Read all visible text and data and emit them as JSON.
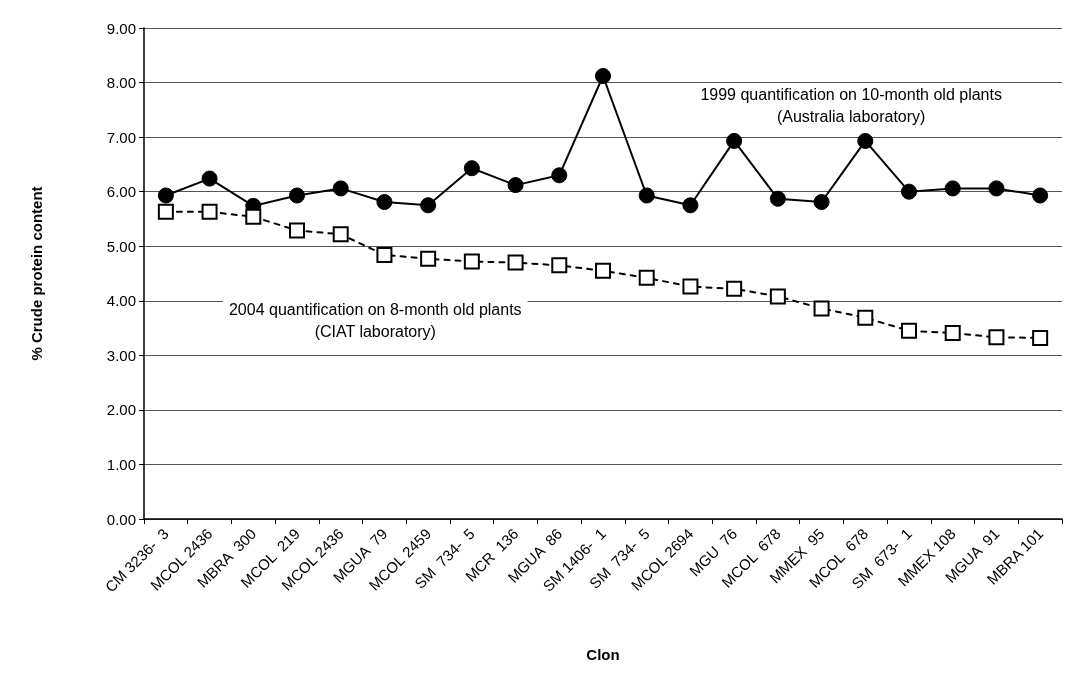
{
  "chart_data": {
    "type": "line",
    "xlabel": "Clon",
    "ylabel": "% Crude protein content",
    "categories": [
      "CM 3236-  3",
      "MCOL 2436",
      "MBRA  300",
      "MCOL  219",
      "MCOL 2436",
      "MGUA  79",
      "MCOL 2459",
      "SM  734-  5",
      "MCR  136",
      "MGUA  86",
      "SM 1406-  1",
      "SM  734-  5",
      "MCOL 2694",
      "MGU  76",
      "MCOL  678",
      "MMEX  95",
      "MCOL  678",
      "SM  673-  1",
      "MMEX 108",
      "MGUA  91",
      "MBRA 101"
    ],
    "series": [
      {
        "name": "1999 quantification on 10-month old plants\n(Australia laboratory)",
        "color": "#000000",
        "marker": "circle",
        "line_style": "solid",
        "values": [
          5.93,
          6.24,
          5.74,
          5.93,
          6.06,
          5.81,
          5.75,
          6.43,
          6.12,
          6.3,
          8.12,
          5.93,
          5.75,
          6.93,
          5.87,
          5.81,
          6.93,
          6.0,
          6.06,
          6.06,
          5.93
        ]
      },
      {
        "name": "2004 quantification on 8-month old plants\n(CIAT laboratory)",
        "color": "#000000",
        "marker": "square",
        "line_style": "dashed",
        "values": [
          5.63,
          5.63,
          5.54,
          5.29,
          5.22,
          4.84,
          4.77,
          4.72,
          4.7,
          4.65,
          4.55,
          4.42,
          4.26,
          4.22,
          4.08,
          3.86,
          3.69,
          3.45,
          3.41,
          3.33,
          3.32
        ]
      }
    ],
    "ylim": [
      0,
      9
    ],
    "yticks": [
      {
        "value": 0,
        "label": "0.00"
      },
      {
        "value": 1,
        "label": "1.00"
      },
      {
        "value": 2,
        "label": "2.00"
      },
      {
        "value": 3,
        "label": "3.00"
      },
      {
        "value": 4,
        "label": "4.00"
      },
      {
        "value": 5,
        "label": "5.00"
      },
      {
        "value": 6,
        "label": "6.00"
      },
      {
        "value": 7,
        "label": "7.00"
      },
      {
        "value": 8,
        "label": "8.00"
      },
      {
        "value": 9,
        "label": "9.00"
      }
    ],
    "grid": "y",
    "legend": false
  }
}
